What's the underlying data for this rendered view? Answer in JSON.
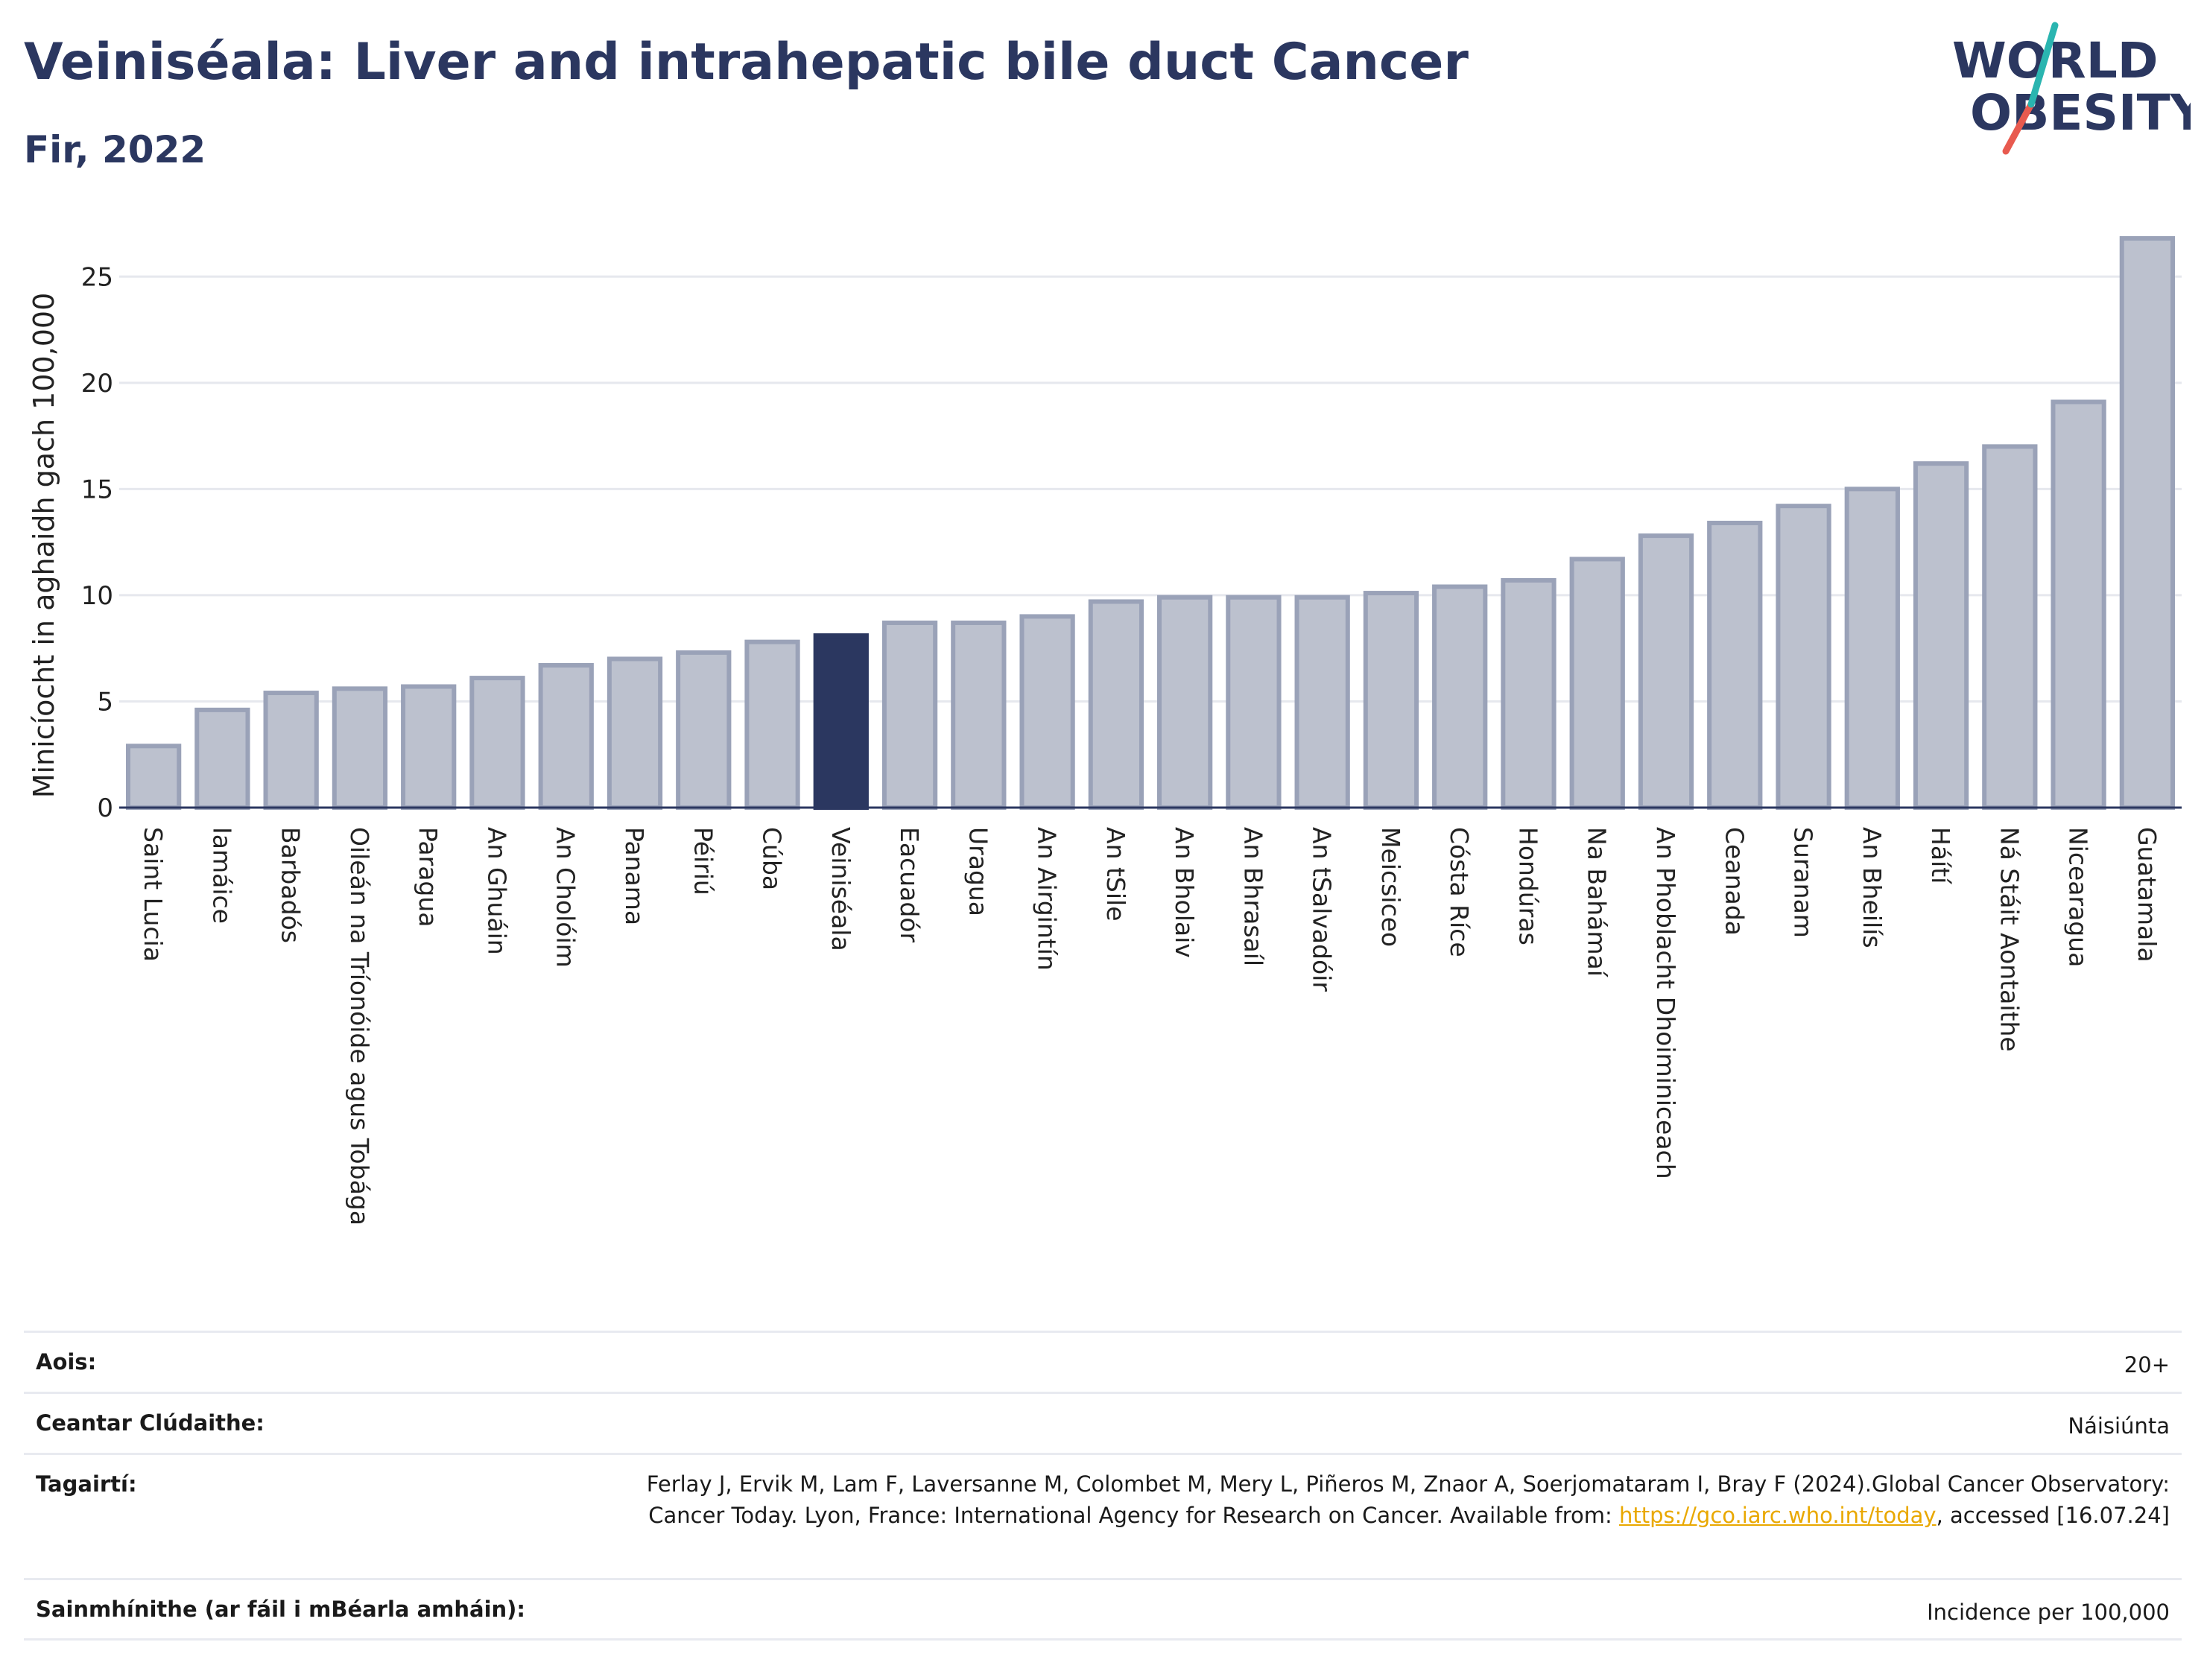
{
  "title": "Veiniséala: Liver and intrahepatic bile duct Cancer",
  "subtitle": "Fir, 2022",
  "logo": {
    "line1": "WORLD",
    "line2": "OBESITY",
    "accent_teal": "#2ab5b0",
    "accent_red": "#e85a4f"
  },
  "colors": {
    "bar": "#bcc1ce",
    "bar_border": "#9aa2b8",
    "highlight": "#2b3760",
    "grid": "#e6e8ee",
    "axis": "#2b3760"
  },
  "chart_data": {
    "type": "bar",
    "ylabel": "Minicíocht in aghaidh gach 100,000",
    "ylim": [
      0,
      27.5
    ],
    "yticks": [
      0,
      5,
      10,
      15,
      20,
      25
    ],
    "grid": true,
    "highlight": "Veiniséala",
    "categories": [
      "Saint Lucia",
      "Iamáice",
      "Barbadós",
      "Oileán na Tríonóide agus Tobága",
      "Paragua",
      "An Ghuáin",
      "An Cholóim",
      "Panama",
      "Péiriú",
      "Cúba",
      "Veiniséala",
      "Eacuadór",
      "Uragua",
      "An Airgintín",
      "An tSile",
      "An Bholaiv",
      "An Bhrasaíl",
      "An tSalvadóir",
      "Meicsiceo",
      "Cósta Ríce",
      "Hondúras",
      "Na Bahámaí",
      "An Phoblacht Dhoiminiceach",
      "Ceanada",
      "Suranam",
      "An Bheilís",
      "Háítí",
      "Ná Stáit Aontaithe",
      "Nicearagua",
      "Guatamala"
    ],
    "values": [
      2.9,
      4.6,
      5.4,
      5.6,
      5.7,
      6.1,
      6.7,
      7.0,
      7.3,
      7.8,
      8.1,
      8.7,
      8.7,
      9.0,
      9.7,
      9.9,
      9.9,
      9.9,
      10.1,
      10.4,
      10.7,
      11.7,
      12.8,
      13.4,
      14.2,
      15.0,
      16.2,
      17.0,
      19.1,
      26.8
    ]
  },
  "meta": [
    {
      "key": "Aois:",
      "value": "20+"
    },
    {
      "key": "Ceantar Clúdaithe:",
      "value": "Náisiúnta"
    },
    {
      "key": "Tagairtí:",
      "value_pre": "Ferlay J, Ervik M, Lam F, Laversanne M, Colombet M, Mery L, Piñeros M, Znaor A, Soerjomataram I, Bray F (2024).Global Cancer Observatory: Cancer Today. Lyon, France: International Agency for Research on Cancer. Available from: ",
      "link": "https://gco.iarc.who.int/today",
      "value_post": ", accessed [16.07.24]"
    },
    {
      "key": "Sainmhínithe (ar fáil i mBéarla amháin):",
      "value": "Incidence per 100,000"
    }
  ]
}
